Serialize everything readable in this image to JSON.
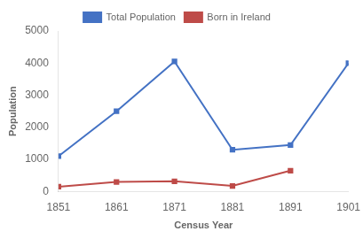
{
  "chart_data": {
    "type": "line",
    "x": [
      1851,
      1861,
      1871,
      1881,
      1891,
      1901
    ],
    "series": [
      {
        "name": "Total Population",
        "color": "#4472C4",
        "marker": "square",
        "values": [
          1100,
          2500,
          4050,
          1300,
          1450,
          4000
        ]
      },
      {
        "name": "Born in Ireland",
        "color": "#BE4B48",
        "marker": "square",
        "values": [
          150,
          300,
          320,
          175,
          650,
          null
        ]
      }
    ],
    "xlabel": "Census Year",
    "ylabel": "Population",
    "xlim": [
      1851,
      1901
    ],
    "xticks": [
      1851,
      1861,
      1871,
      1881,
      1891,
      1901
    ],
    "ylim": [
      0,
      5000
    ],
    "yticks": [
      0,
      1000,
      2000,
      3000,
      4000,
      5000
    ],
    "grid": false,
    "legend": "top"
  }
}
